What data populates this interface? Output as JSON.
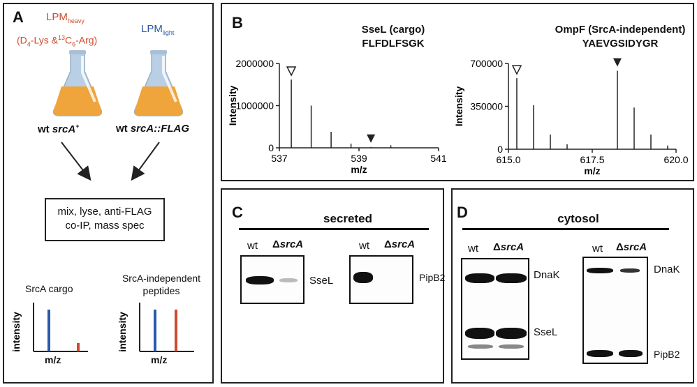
{
  "panelA": {
    "label": "A",
    "heavy_title": "LPM",
    "heavy_sub": "heavy",
    "heavy_formula_a": "(D",
    "heavy_formula_b": "4",
    "heavy_formula_c": "-Lys &",
    "heavy_formula_d": "13",
    "heavy_formula_e": "C",
    "heavy_formula_f": "6",
    "heavy_formula_g": "-Arg)",
    "light_title": "LPM",
    "light_sub": "light",
    "strain1_prefix": "wt ",
    "strain1_gene": "srcA",
    "strain1_sup": "+",
    "strain2_prefix": "wt ",
    "strain2_gene": "srcA::FLAG",
    "box_line1": "mix, lyse, anti-FLAG",
    "box_line2": "co-IP, mass spec",
    "cargo_title": "SrcA cargo",
    "indep_title_line1": "SrcA-independent",
    "indep_title_line2": "peptides",
    "ylabel": "intensity",
    "xlabel": "m/z",
    "colors": {
      "heavy": "#d04a2e",
      "light": "#2a5aa8",
      "flask_fill": "#f0a43c",
      "flask_glass": "#b9cfe6"
    }
  },
  "panelB": {
    "label": "B",
    "chart_data": [
      {
        "type": "line",
        "title": "SseL (cargo)",
        "subtitle": "FLFDLFSGK",
        "xlabel": "m/z",
        "ylabel": "Intensity",
        "xlim": [
          537,
          541
        ],
        "ylim": [
          0,
          2000000
        ],
        "xticks": [
          "537",
          "539",
          "541"
        ],
        "yticks": [
          "0",
          "1000000",
          "2000000"
        ],
        "peaks": [
          {
            "x": 537.3,
            "y": 1620000
          },
          {
            "x": 537.8,
            "y": 1000000
          },
          {
            "x": 538.3,
            "y": 380000
          },
          {
            "x": 538.8,
            "y": 100000
          },
          {
            "x": 539.3,
            "y": 20000
          },
          {
            "x": 539.8,
            "y": 60000
          }
        ],
        "markers": [
          {
            "x": 537.3,
            "kind": "open"
          },
          {
            "x": 539.3,
            "kind": "filled"
          }
        ]
      },
      {
        "type": "line",
        "title": "OmpF (SrcA-independent)",
        "subtitle": "YAEVGSIDYGR",
        "xlabel": "m/z",
        "ylabel": "Intensity",
        "xlim": [
          615.0,
          620.0
        ],
        "ylim": [
          0,
          700000
        ],
        "xticks": [
          "615.0",
          "617.5",
          "620.0"
        ],
        "yticks": [
          "0",
          "350000",
          "700000"
        ],
        "peaks": [
          {
            "x": 615.25,
            "y": 580000
          },
          {
            "x": 615.75,
            "y": 360000
          },
          {
            "x": 616.25,
            "y": 120000
          },
          {
            "x": 616.75,
            "y": 40000
          },
          {
            "x": 618.25,
            "y": 640000
          },
          {
            "x": 618.75,
            "y": 340000
          },
          {
            "x": 619.25,
            "y": 120000
          },
          {
            "x": 619.75,
            "y": 30000
          }
        ],
        "markers": [
          {
            "x": 615.25,
            "kind": "open"
          },
          {
            "x": 618.25,
            "kind": "filled"
          }
        ]
      }
    ]
  },
  "panelC": {
    "label": "C",
    "header": "secreted",
    "blots": [
      {
        "lane1": "wt",
        "lane2_prefix": "Δ",
        "lane2_gene": "srcA",
        "band": "SseL"
      },
      {
        "lane1": "wt",
        "lane2_prefix": "Δ",
        "lane2_gene": "srcA",
        "band": "PipB2"
      }
    ]
  },
  "panelD": {
    "label": "D",
    "header": "cytosol",
    "blots": [
      {
        "lane1": "wt",
        "lane2_prefix": "Δ",
        "lane2_gene": "srcA",
        "band_top": "DnaK",
        "band_bottom": "SseL"
      },
      {
        "lane1": "wt",
        "lane2_prefix": "Δ",
        "lane2_gene": "srcA",
        "band_top": "DnaK",
        "band_bottom": "PipB2"
      }
    ]
  }
}
